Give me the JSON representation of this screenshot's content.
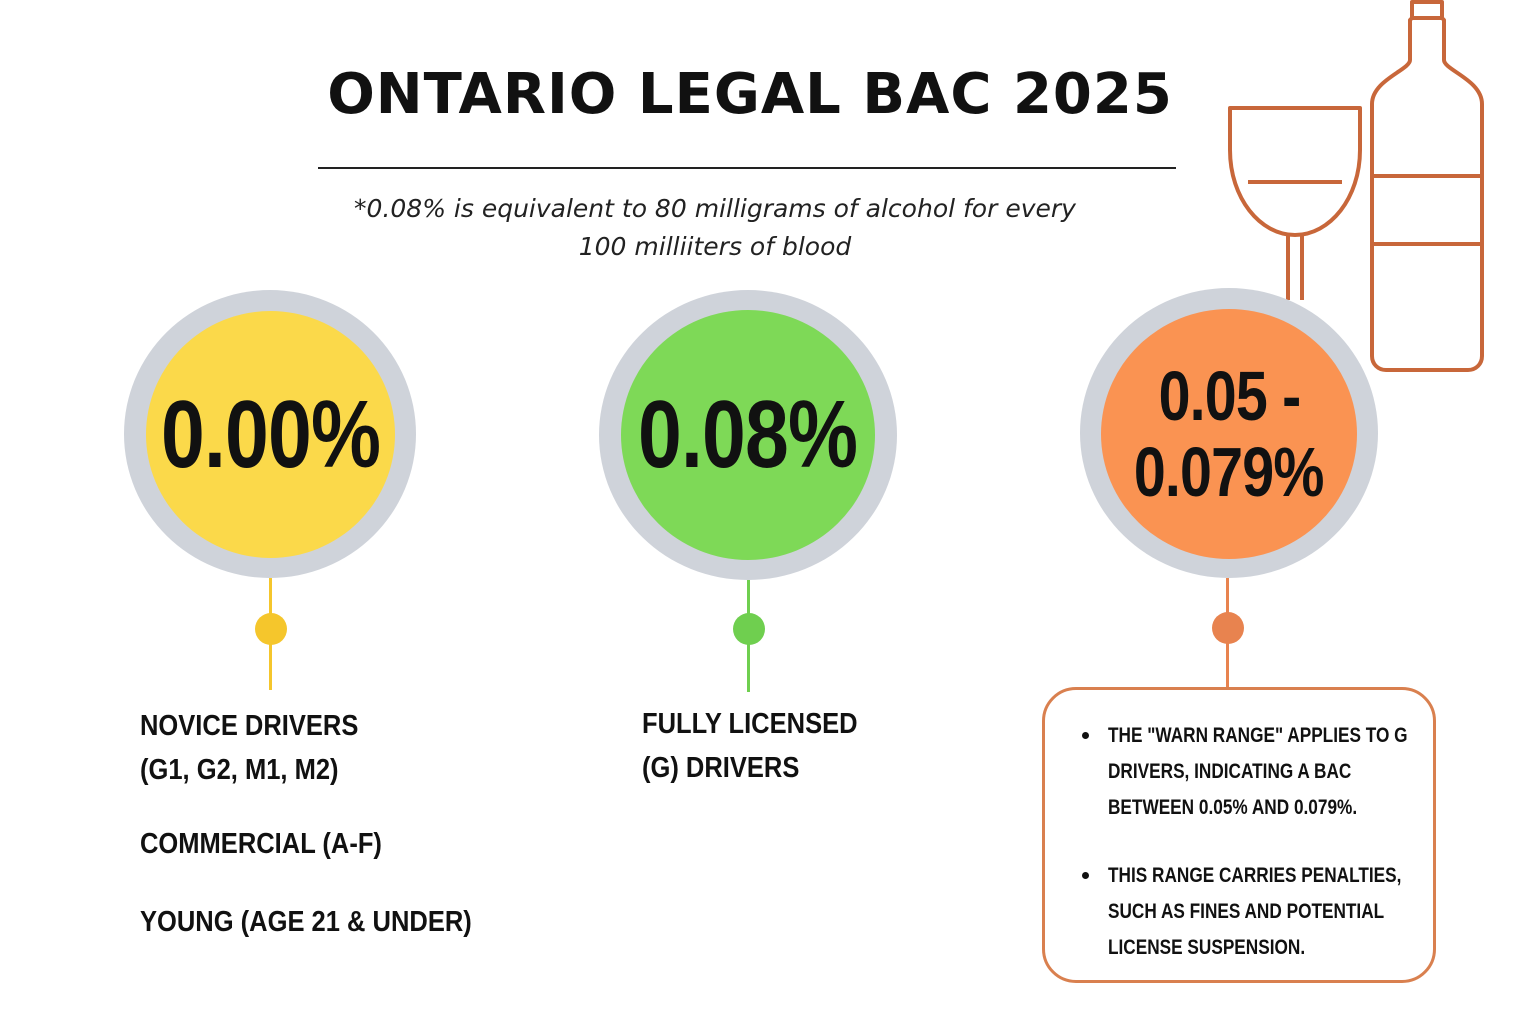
{
  "title": "ONTARIO LEGAL BAC 2025",
  "note": {
    "line1": "*0.08% is equivalent to 80 milligrams of alcohol for every",
    "line2": "100 milliiters of blood"
  },
  "colors": {
    "novice": "#fbd94a",
    "novice_accent": "#f5c62c",
    "licensed": "#7ed957",
    "licensed_accent": "#6fcf4f",
    "warn": "#fa9352",
    "warn_accent": "#e8834f",
    "ring": "#cfd3da",
    "line_art": "#c8673a"
  },
  "icons": [
    "wine-glass-icon",
    "wine-bottle-icon"
  ],
  "columns": [
    {
      "value": "0.00%",
      "labels": [
        "NOVICE DRIVERS",
        "(G1, G2, M1, M2)",
        "COMMERCIAL (A-F)",
        "YOUNG (AGE 21 & UNDER)"
      ]
    },
    {
      "value": "0.08%",
      "labels": [
        "FULLY LICENSED",
        "(G) DRIVERS"
      ]
    },
    {
      "value_line1": "0.05 -",
      "value_line2": "0.079%",
      "bullets": [
        "THE \"WARN RANGE\" APPLIES TO G DRIVERS, INDICATING A BAC BETWEEN 0.05% AND 0.079%.",
        "THIS RANGE CARRIES PENALTIES, SUCH AS FINES AND POTENTIAL LICENSE SUSPENSION."
      ]
    }
  ]
}
